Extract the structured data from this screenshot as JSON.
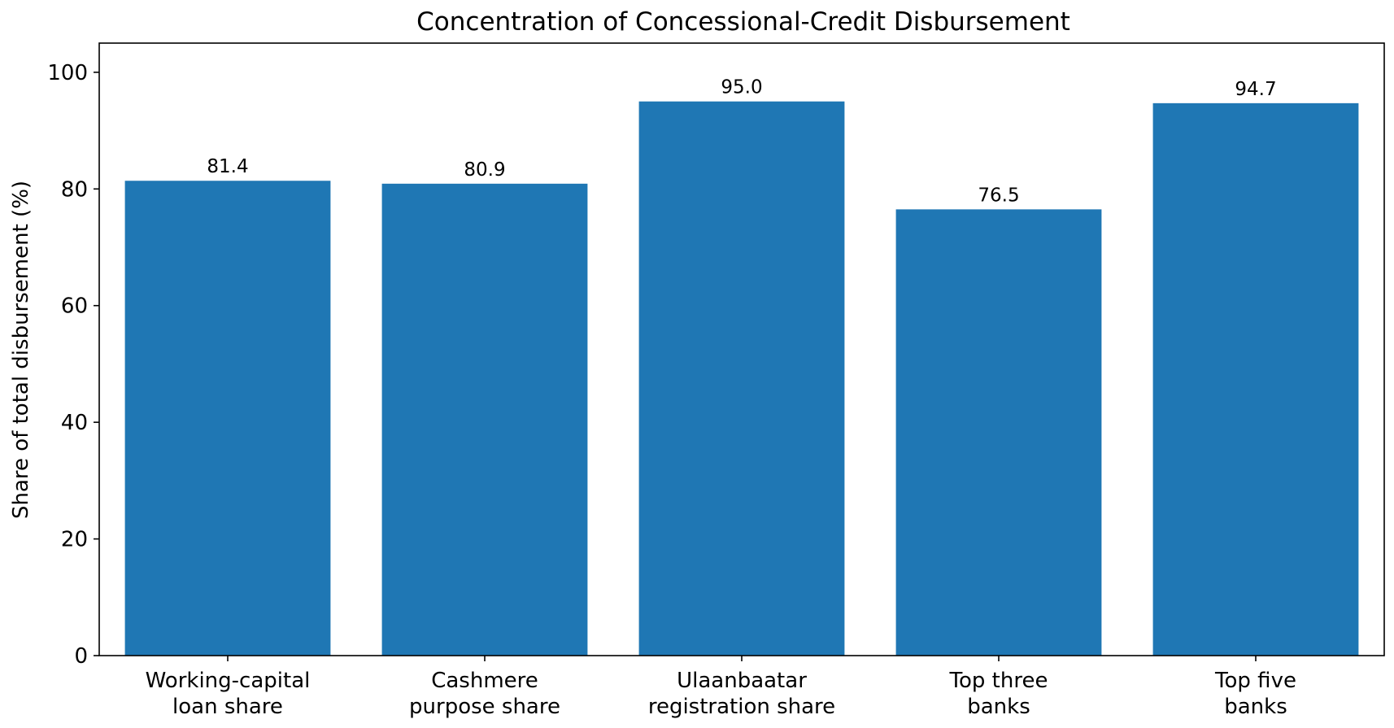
{
  "chart_data": {
    "type": "bar",
    "title": "Concentration of Concessional-Credit Disbursement",
    "xlabel": "",
    "ylabel": "Share of total disbursement (%)",
    "categories": [
      [
        "Working-capital",
        "loan share"
      ],
      [
        "Cashmere",
        "purpose share"
      ],
      [
        "Ulaanbaatar",
        "registration share"
      ],
      [
        "Top three",
        "banks"
      ],
      [
        "Top five",
        "banks"
      ]
    ],
    "values": [
      81.4,
      80.9,
      95.0,
      76.5,
      94.7
    ],
    "value_labels": [
      "81.4",
      "80.9",
      "95.0",
      "76.5",
      "94.7"
    ],
    "ylim": [
      0,
      105
    ],
    "yticks": [
      0,
      20,
      40,
      60,
      80,
      100
    ],
    "grid": false,
    "bar_color": "#1f77b4"
  }
}
